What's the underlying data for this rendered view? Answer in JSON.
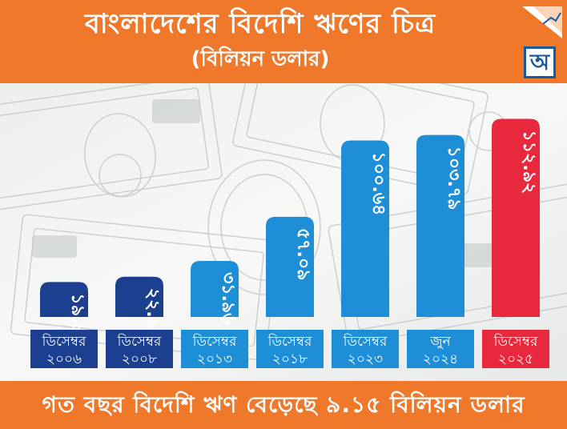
{
  "header": {
    "title": "বাংলাদেশের বিদেশি ঋণের চিত্র",
    "subtitle": "(বিলিয়ন ডলার)",
    "logo_glyph": "অ"
  },
  "footer": {
    "text": "গত বছর বিদেশি ঋণ বেড়েছে ৯.১৫ বিলিয়ন ডলার"
  },
  "colors": {
    "orange": "#f0782a",
    "dark_blue": "#1d3f8f",
    "mid_blue": "#1e8fd6",
    "red": "#e8283c"
  },
  "chart_data": {
    "type": "bar",
    "categories": [
      {
        "line1": "ডিসেম্বর",
        "line2": "২০০৬"
      },
      {
        "line1": "ডিসেম্বর",
        "line2": "২০০৮"
      },
      {
        "line1": "ডিসেম্বর",
        "line2": "২০১৩"
      },
      {
        "line1": "ডিসেম্বর",
        "line2": "২০১৮"
      },
      {
        "line1": "ডিসেম্বর",
        "line2": "২০২৩"
      },
      {
        "line1": "জুন",
        "line2": "২০২৪"
      },
      {
        "line1": "ডিসেম্বর",
        "line2": "২০২৫"
      }
    ],
    "values": [
      19.89,
      22.96,
      31.96,
      57.09,
      100.64,
      103.79,
      112.92
    ],
    "value_labels": [
      "১৯.৮৯",
      "২২.৯৬",
      "৩১.৯৬",
      "৫৭.০৯",
      "১০০.৬৪",
      "১০৩.৭৯",
      "১১২.৯২"
    ],
    "bar_colors": [
      "#1d3f8f",
      "#1d3f8f",
      "#1e8fd6",
      "#1e8fd6",
      "#1e8fd6",
      "#1e8fd6",
      "#e8283c"
    ],
    "ylim": [
      0,
      115
    ],
    "grid": false,
    "title": "বাংলাদেশের বিদেশি ঋণের চিত্র",
    "ylabel": "(বিলিয়ন ডলার)"
  }
}
